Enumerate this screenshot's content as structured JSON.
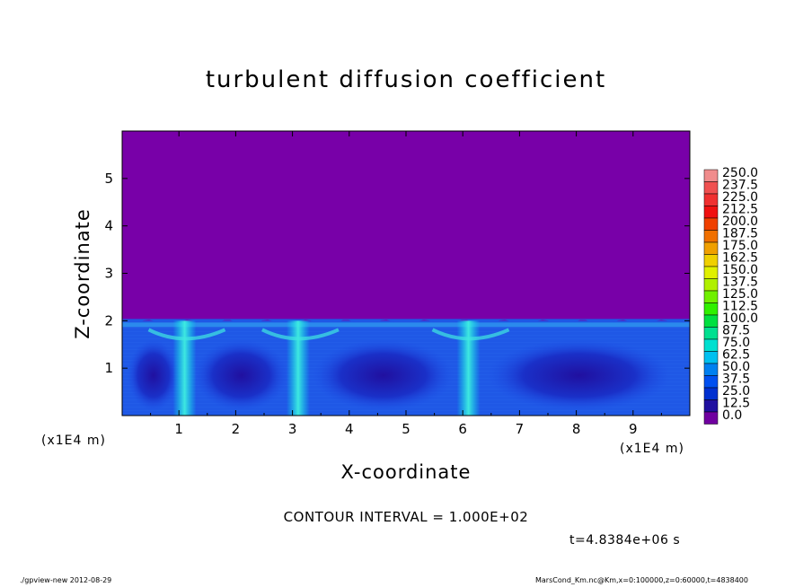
{
  "chart_data": {
    "type": "heatmap",
    "title": "turbulent diffusion coefficient",
    "xlabel": "X-coordinate",
    "ylabel": "Z-coordinate",
    "x_unit": "(x1E4 m)",
    "x_ticks": [
      "1",
      "2",
      "3",
      "4",
      "5",
      "6",
      "7",
      "8",
      "9"
    ],
    "y_ticks": [
      "1",
      "2",
      "3",
      "4",
      "5"
    ],
    "xlim": [
      0,
      10
    ],
    "ylim": [
      0,
      6
    ],
    "colorbar_levels": [
      "250.0",
      "237.5",
      "225.0",
      "212.5",
      "200.0",
      "187.5",
      "175.0",
      "162.5",
      "150.0",
      "137.5",
      "125.0",
      "112.5",
      "100.0",
      "87.5",
      "75.0",
      "62.5",
      "50.0",
      "37.5",
      "25.0",
      "12.5",
      "0.0"
    ],
    "colorbar_colors": [
      "#f08c8c",
      "#f05050",
      "#f03030",
      "#f01010",
      "#f04000",
      "#f07000",
      "#f0a000",
      "#f0d000",
      "#e0f000",
      "#b0f000",
      "#70f000",
      "#30f000",
      "#00e040",
      "#00e090",
      "#00e0d0",
      "#00c0f0",
      "#0080f0",
      "#0050f0",
      "#0030d0",
      "#2010a0",
      "#7000a0"
    ],
    "background_color": "#7800a8",
    "boundary_layer_top_z": 2,
    "plume_x": [
      1.1,
      3.1,
      6.1
    ],
    "contour_interval": "CONTOUR INTERVAL = 1.000E+02",
    "time": "t=4.8384e+06 s"
  },
  "footer": {
    "left": "./gpview-new   2012-08-29",
    "right": "MarsCond_Km.nc@Km,x=0:100000,z=0:60000,t=4838400"
  }
}
